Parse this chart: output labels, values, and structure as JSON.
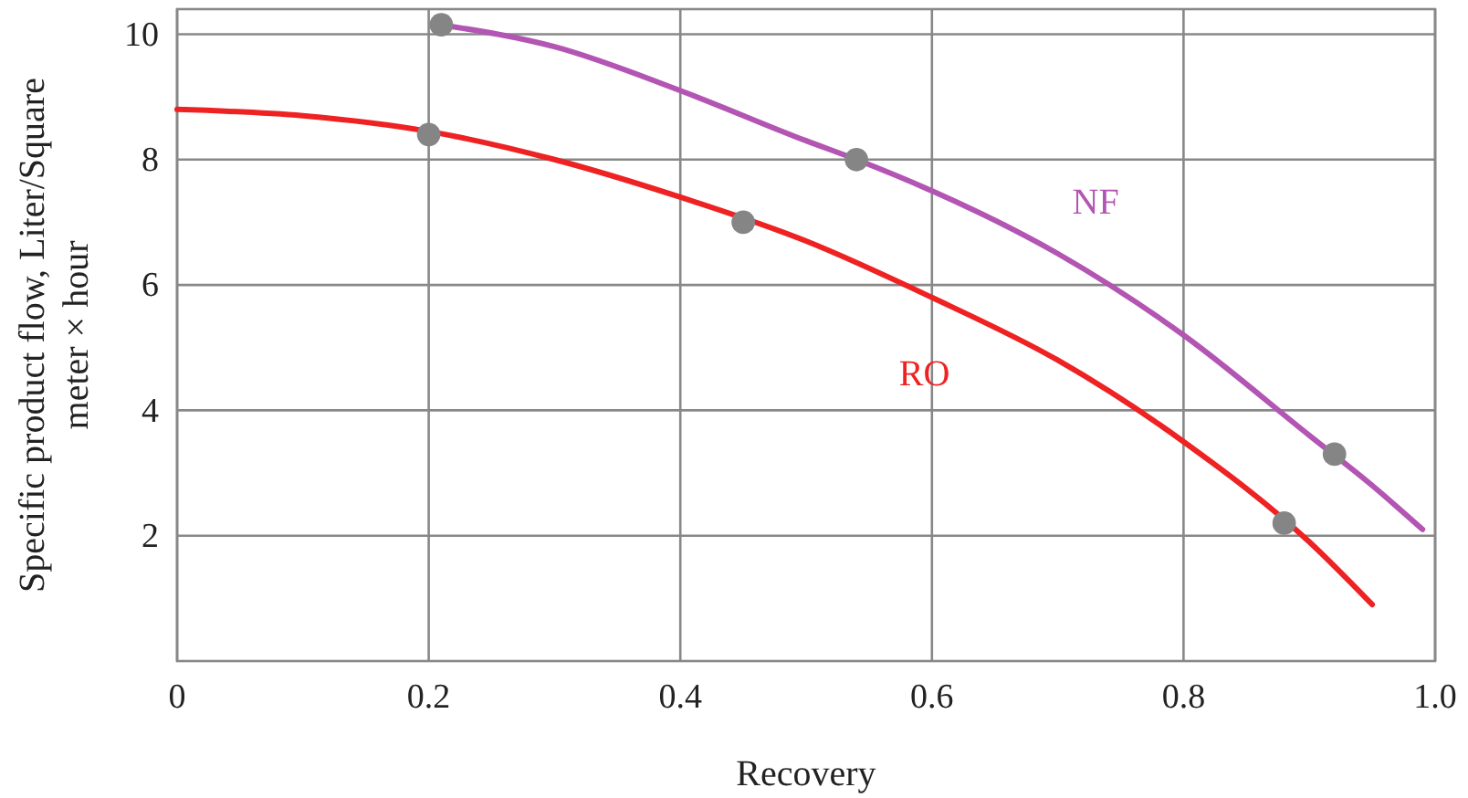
{
  "chart_data": {
    "type": "line",
    "xlabel": "Recovery",
    "ylabel": "Specific product flow, Liter/Square meter × hour",
    "xlim": [
      0,
      1
    ],
    "xticks": [
      0,
      0.2,
      0.4,
      0.6,
      0.8,
      {
        "value": 1,
        "label": "1.0"
      }
    ],
    "ylim": [
      0,
      10.4
    ],
    "yticks": [
      2,
      4,
      6,
      8,
      10
    ],
    "grid": true,
    "series": [
      {
        "name": "NF",
        "color": "#b355b3",
        "x": [
          0.21,
          0.3,
          0.4,
          0.5,
          0.54,
          0.6,
          0.7,
          0.8,
          0.9,
          0.95,
          0.99
        ],
        "values": [
          10.15,
          9.8,
          9.1,
          8.3,
          8.0,
          7.5,
          6.5,
          5.2,
          3.6,
          2.8,
          2.1
        ]
      },
      {
        "name": "RO",
        "color": "#ee2222",
        "x": [
          0,
          0.1,
          0.2,
          0.3,
          0.4,
          0.5,
          0.6,
          0.7,
          0.8,
          0.9,
          0.95
        ],
        "values": [
          8.8,
          8.7,
          8.45,
          8.0,
          7.4,
          6.7,
          5.8,
          4.8,
          3.5,
          1.9,
          0.9
        ]
      },
      {
        "type": "scatter",
        "color": "#858585",
        "marker": "circle",
        "x": [
          0.2,
          0.45,
          0.88,
          0.21,
          0.54,
          0.92
        ],
        "values": [
          8.4,
          7.0,
          2.2,
          10.15,
          8.0,
          3.3
        ]
      }
    ]
  }
}
